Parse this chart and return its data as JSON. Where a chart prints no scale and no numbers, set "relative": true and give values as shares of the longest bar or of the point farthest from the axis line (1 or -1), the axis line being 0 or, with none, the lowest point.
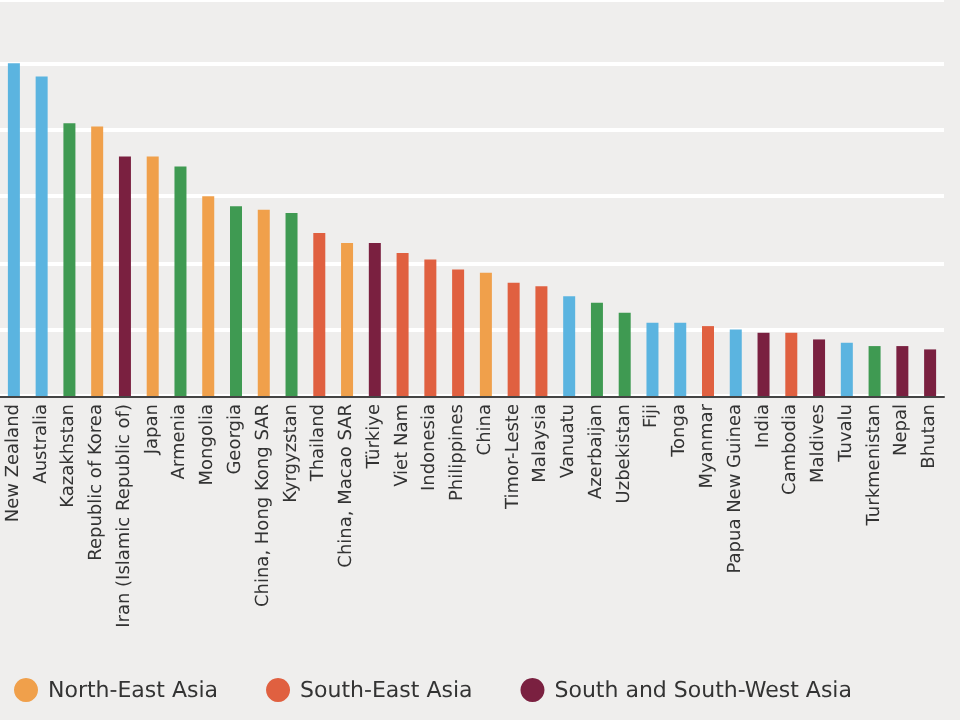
{
  "chart_data": {
    "type": "bar",
    "relative": true,
    "grid": "y",
    "legend": "bottom",
    "categories": [
      "New Zealand",
      "Australia",
      "Kazakhstan",
      "Republic of Korea",
      "Iran (Islamic Republic of)",
      "Japan",
      "Armenia",
      "Mongolia",
      "Georgia",
      "China, Hong Kong SAR",
      "Kyrgyzstan",
      "Thailand",
      "China, Macao SAR",
      "Türkiye",
      "Viet Nam",
      "Indonesia",
      "Philippines",
      "China",
      "Timor-Leste",
      "Malaysia",
      "Vanuatu",
      "Azerbaijan",
      "Uzbekistan",
      "Fiji",
      "Tonga",
      "Myanmar",
      "Papua New Guinea",
      "India",
      "Cambodia",
      "Maldives",
      "Tuvalu",
      "Turkmenistan",
      "Nepal",
      "Bhutan"
    ],
    "series": [
      {
        "color": "#5bb4e0",
        "values": [
          1,
          0.96,
          null,
          null,
          null,
          null,
          null,
          null,
          null,
          null,
          null,
          null,
          null,
          null,
          null,
          null,
          null,
          null,
          null,
          null,
          0.3,
          null,
          null,
          0.22,
          0.22,
          null,
          0.2,
          null,
          null,
          null,
          0.16,
          null,
          null,
          null
        ]
      },
      {
        "color": "#3f9a52",
        "values": [
          null,
          null,
          0.82,
          null,
          null,
          null,
          0.69,
          null,
          0.57,
          null,
          0.55,
          null,
          null,
          null,
          null,
          null,
          null,
          null,
          null,
          null,
          null,
          0.28,
          0.25,
          null,
          null,
          null,
          null,
          null,
          null,
          null,
          null,
          0.15,
          null,
          null
        ]
      },
      {
        "name": "North-East Asia",
        "color": "#f0a04b",
        "values": [
          null,
          null,
          null,
          0.81,
          null,
          0.72,
          null,
          0.6,
          null,
          0.56,
          null,
          null,
          0.46,
          null,
          null,
          null,
          null,
          0.37,
          null,
          null,
          null,
          null,
          null,
          null,
          null,
          null,
          null,
          null,
          null,
          null,
          null,
          null,
          null,
          null
        ]
      },
      {
        "name": "South-East Asia",
        "color": "#e06040",
        "values": [
          null,
          null,
          null,
          null,
          null,
          null,
          null,
          null,
          null,
          null,
          null,
          0.49,
          null,
          null,
          0.43,
          0.41,
          0.38,
          null,
          0.34,
          0.33,
          null,
          null,
          null,
          null,
          null,
          0.21,
          null,
          null,
          0.19,
          null,
          null,
          null,
          null,
          null
        ]
      },
      {
        "name": "South and South-West Asia",
        "color": "#7a2040",
        "values": [
          null,
          null,
          null,
          null,
          0.72,
          null,
          null,
          null,
          null,
          null,
          null,
          null,
          null,
          0.46,
          null,
          null,
          null,
          null,
          null,
          null,
          null,
          null,
          null,
          null,
          null,
          null,
          null,
          0.19,
          null,
          0.17,
          null,
          null,
          0.15,
          0.14
        ]
      }
    ]
  }
}
